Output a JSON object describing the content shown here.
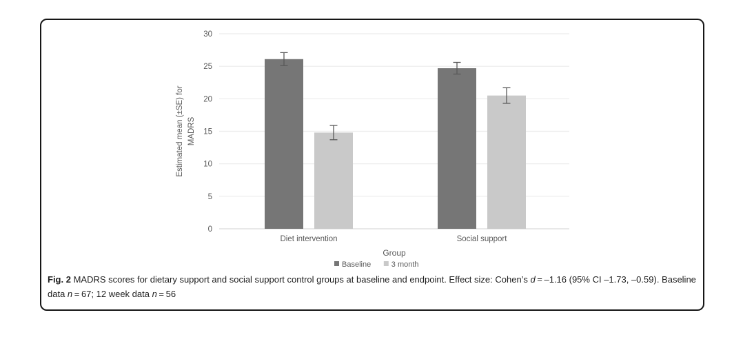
{
  "figure": {
    "caption": {
      "label": "Fig. 2",
      "segments": [
        {
          "t": " MADRS scores for dietary support and social support control groups at baseline and endpoint. Effect size: Cohen’s ",
          "s": "normal"
        },
        {
          "t": "d",
          "s": "italic"
        },
        {
          "t": " = –1.16 (95% CI –1.73, –0.59). Baseline data ",
          "s": "normal"
        },
        {
          "t": "n",
          "s": "italic"
        },
        {
          "t": " = 67; 12 week data ",
          "s": "normal"
        },
        {
          "t": "n",
          "s": "italic"
        },
        {
          "t": " = 56",
          "s": "normal"
        }
      ]
    }
  },
  "chart_data": {
    "type": "bar",
    "title": "",
    "categories": [
      "Diet intervention",
      "Social support"
    ],
    "series": [
      {
        "name": "Baseline",
        "color": "#767676",
        "values": [
          26.1,
          24.7
        ],
        "se": [
          1.0,
          0.9
        ]
      },
      {
        "name": "3 month",
        "color": "#c9c9c9",
        "values": [
          14.8,
          20.5
        ],
        "se": [
          1.1,
          1.2
        ]
      }
    ],
    "xlabel": "Group",
    "ylabel": "Estimated mean (±SE) for MADRS",
    "ylabel_lines": [
      "Estimated mean (±SE) for",
      "MADRS"
    ],
    "ylim": [
      0,
      30
    ],
    "yticks": [
      0,
      5,
      10,
      15,
      20,
      25,
      30
    ],
    "grid": true,
    "legend_position": "bottom",
    "error_bars": true,
    "style": {
      "gridline_color": "#ececec",
      "axis_line_color": "#d9d9d9",
      "error_bar_color": "#595959",
      "text_color": "#595959"
    }
  }
}
